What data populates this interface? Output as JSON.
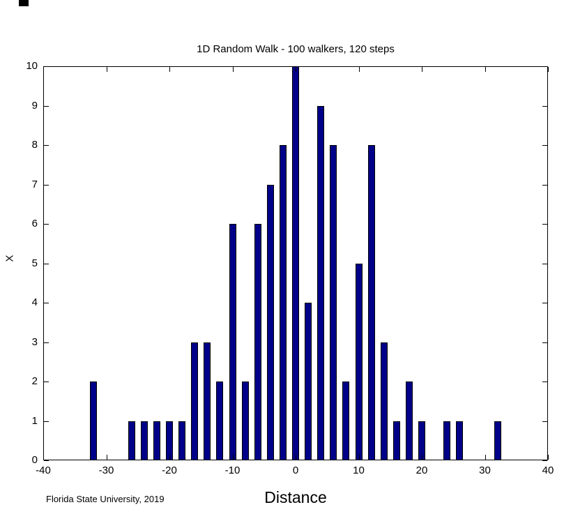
{
  "chart_data": {
    "type": "bar",
    "title": "1D Random Walk - 100 walkers, 120 steps",
    "xlabel": "Distance",
    "ylabel": "X",
    "xlim": [
      -40,
      40
    ],
    "ylim": [
      0,
      10
    ],
    "x_ticks": [
      -40,
      -30,
      -20,
      -10,
      0,
      10,
      20,
      30,
      40
    ],
    "y_ticks": [
      0,
      1,
      2,
      3,
      4,
      5,
      6,
      7,
      8,
      9,
      10
    ],
    "grid": false,
    "legend": null,
    "bar_color": "#000088",
    "bar_edge_color": "#000000",
    "bin_width": 2,
    "x": [
      -32,
      -26,
      -24,
      -22,
      -20,
      -18,
      -16,
      -14,
      -12,
      -10,
      -8,
      -6,
      -4,
      -2,
      0,
      2,
      4,
      6,
      8,
      10,
      12,
      14,
      16,
      18,
      20,
      24,
      26,
      32
    ],
    "counts": [
      2,
      1,
      1,
      1,
      1,
      1,
      3,
      3,
      2,
      6,
      2,
      6,
      7,
      8,
      10,
      4,
      9,
      8,
      2,
      5,
      8,
      3,
      1,
      2,
      1,
      1,
      1,
      1
    ]
  },
  "footer": {
    "text": "Florida State University, 2019"
  }
}
